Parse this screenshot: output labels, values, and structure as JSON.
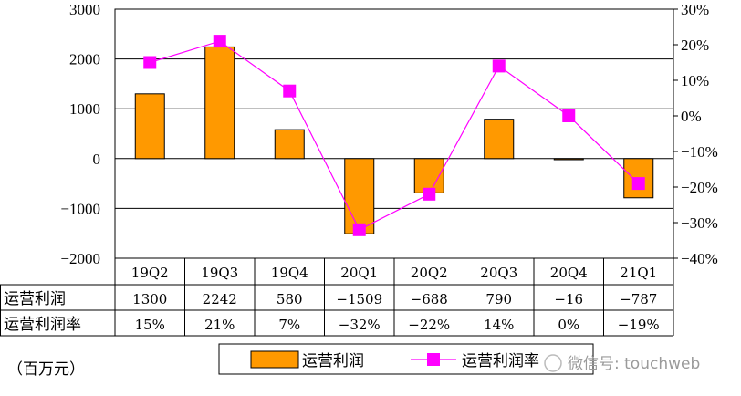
{
  "chart_data": {
    "type": "bar",
    "categories": [
      "19Q2",
      "19Q3",
      "19Q4",
      "20Q1",
      "20Q2",
      "20Q3",
      "20Q4",
      "21Q1"
    ],
    "series": [
      {
        "name": "运营利润",
        "type": "bar",
        "axis": "left",
        "values": [
          1300,
          2242,
          580,
          -1509,
          -688,
          790,
          -16,
          -787
        ],
        "display": [
          "1300",
          "2242",
          "580",
          "−1509",
          "−688",
          "790",
          "−16",
          "−787"
        ],
        "color": "#FF9900"
      },
      {
        "name": "运营利润率",
        "type": "line",
        "axis": "right",
        "values": [
          15,
          21,
          7,
          -32,
          -22,
          14,
          0,
          -19
        ],
        "display": [
          "15%",
          "21%",
          "7%",
          "−32%",
          "−22%",
          "14%",
          "0%",
          "−19%"
        ],
        "color": "#FF00FF"
      }
    ],
    "y_left": {
      "ylim": [
        -2000,
        3000
      ],
      "ticks": [
        "−2000",
        "−1000",
        "0",
        "1000",
        "2000",
        "3000"
      ]
    },
    "y_right": {
      "ylim": [
        -40,
        30
      ],
      "ticks": [
        "−40%",
        "−30%",
        "−20%",
        "−10%",
        "0%",
        "10%",
        "20%",
        "30%"
      ]
    },
    "grid": true,
    "table_labels": [
      "运营利润",
      "运营利润率"
    ],
    "unit_note": "（百万元）",
    "legend": {
      "position": "bottom",
      "entries": [
        "运营利润",
        "运营利润率"
      ]
    }
  },
  "watermark": "微信号: touchweb"
}
